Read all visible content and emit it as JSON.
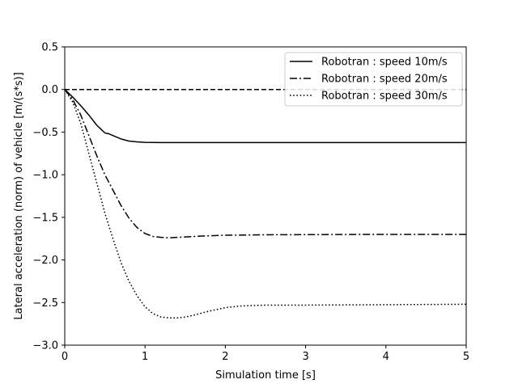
{
  "chart_data": {
    "type": "line",
    "title": "",
    "xlabel": "Simulation time [s]",
    "ylabel": "Lateral acceleration (norm) of vehicle [m/(s*s)]",
    "xlim": [
      0,
      5
    ],
    "ylim": [
      -3.0,
      0.5
    ],
    "xticks": [
      "0",
      "1",
      "2",
      "3",
      "4",
      "5"
    ],
    "yticks": [
      "0.5",
      "0.0",
      "−0.5",
      "−1.0",
      "−1.5",
      "−2.0",
      "−2.5",
      "−3.0"
    ],
    "grid": false,
    "legend_position": "upper-right",
    "reference_line": {
      "y": 0.0,
      "style": "dashed"
    },
    "series": [
      {
        "name": "Robotran : speed 10m/s",
        "style": "solid",
        "x": [
          0,
          0.1,
          0.2,
          0.3,
          0.4,
          0.5,
          0.55,
          0.6,
          0.7,
          0.8,
          0.9,
          1.0,
          1.1,
          1.2,
          1.5,
          2.0,
          3.0,
          4.0,
          5.0
        ],
        "y": [
          0,
          -0.09,
          -0.19,
          -0.3,
          -0.42,
          -0.51,
          -0.52,
          -0.54,
          -0.58,
          -0.605,
          -0.615,
          -0.62,
          -0.622,
          -0.623,
          -0.623,
          -0.623,
          -0.623,
          -0.623,
          -0.623
        ]
      },
      {
        "name": "Robotran : speed 20m/s",
        "style": "dashdot",
        "x": [
          0,
          0.1,
          0.2,
          0.3,
          0.4,
          0.5,
          0.6,
          0.7,
          0.8,
          0.9,
          1.0,
          1.1,
          1.2,
          1.3,
          1.4,
          1.5,
          1.7,
          2.0,
          2.5,
          3.0,
          4.0,
          5.0
        ],
        "y": [
          0,
          -0.12,
          -0.3,
          -0.54,
          -0.78,
          -1.0,
          -1.18,
          -1.36,
          -1.51,
          -1.62,
          -1.69,
          -1.725,
          -1.735,
          -1.74,
          -1.735,
          -1.73,
          -1.72,
          -1.71,
          -1.705,
          -1.703,
          -1.7,
          -1.7
        ]
      },
      {
        "name": "Robotran : speed 30m/s",
        "style": "dotted",
        "x": [
          0,
          0.1,
          0.2,
          0.3,
          0.4,
          0.5,
          0.6,
          0.7,
          0.8,
          0.9,
          1.0,
          1.1,
          1.2,
          1.3,
          1.4,
          1.5,
          1.6,
          1.8,
          2.0,
          2.2,
          2.5,
          3.0,
          4.0,
          5.0
        ],
        "y": [
          0,
          -0.15,
          -0.4,
          -0.75,
          -1.1,
          -1.45,
          -1.75,
          -2.03,
          -2.25,
          -2.42,
          -2.55,
          -2.63,
          -2.67,
          -2.68,
          -2.68,
          -2.67,
          -2.65,
          -2.6,
          -2.56,
          -2.54,
          -2.53,
          -2.53,
          -2.525,
          -2.52
        ]
      }
    ]
  }
}
